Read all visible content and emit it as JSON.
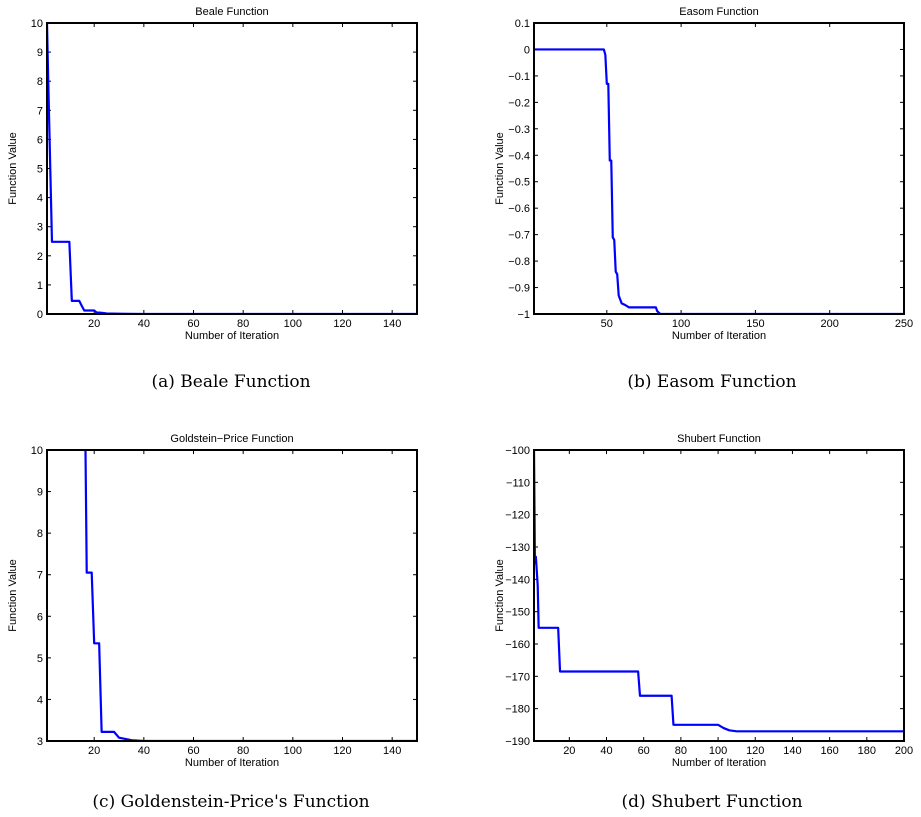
{
  "line_color": "#0000ff",
  "chart_data": [
    {
      "type": "line",
      "title": "Beale Function",
      "caption": "(a) Beale Function",
      "xlabel": "Number of Iteration",
      "ylabel": "Function Value",
      "xlim": [
        1,
        150
      ],
      "ylim": [
        0,
        10
      ],
      "xticks": [
        20,
        40,
        60,
        80,
        100,
        120,
        140
      ],
      "yticks": [
        0,
        1,
        2,
        3,
        4,
        5,
        6,
        7,
        8,
        9,
        10
      ],
      "x": [
        1,
        1.5,
        3,
        10,
        11,
        14,
        15,
        16,
        20,
        21,
        22,
        24,
        25,
        30,
        40,
        150
      ],
      "y": [
        10,
        8,
        2.48,
        2.48,
        0.45,
        0.45,
        0.28,
        0.12,
        0.12,
        0.05,
        0.05,
        0.03,
        0.02,
        0.01,
        0.0,
        0.0
      ]
    },
    {
      "type": "line",
      "title": "Easom Function",
      "caption": "(b) Easom Function",
      "xlabel": "Number of Iteration",
      "ylabel": "Function Value",
      "xlim": [
        1,
        250
      ],
      "ylim": [
        -1,
        0.1
      ],
      "xticks": [
        50,
        100,
        150,
        200,
        250
      ],
      "yticks": [
        0.1,
        0,
        -0.1,
        -0.2,
        -0.3,
        -0.4,
        -0.5,
        -0.6,
        -0.7,
        -0.8,
        -0.9,
        -1
      ],
      "x": [
        1,
        48,
        49,
        50,
        51,
        52,
        53,
        54,
        55,
        56,
        57,
        58,
        60,
        62,
        65,
        83,
        84,
        86,
        90,
        250
      ],
      "y": [
        0,
        0,
        -0.02,
        -0.13,
        -0.13,
        -0.42,
        -0.42,
        -0.71,
        -0.72,
        -0.84,
        -0.85,
        -0.93,
        -0.96,
        -0.965,
        -0.975,
        -0.975,
        -0.99,
        -1,
        -1,
        -1
      ]
    },
    {
      "type": "line",
      "title": "Goldstein−Price Function",
      "caption": "(c) Goldenstein-Price's Function",
      "xlabel": "Number of Iteration",
      "ylabel": "Function Value",
      "xlim": [
        1,
        150
      ],
      "ylim": [
        3,
        10
      ],
      "xticks": [
        20,
        40,
        60,
        80,
        100,
        120,
        140
      ],
      "yticks": [
        3,
        4,
        5,
        6,
        7,
        8,
        9,
        10
      ],
      "x": [
        16.5,
        17,
        19,
        20,
        22,
        23,
        28,
        30,
        35,
        40,
        150
      ],
      "y": [
        10,
        7.05,
        7.05,
        5.35,
        5.35,
        3.22,
        3.22,
        3.08,
        3.02,
        3.0,
        3.0
      ]
    },
    {
      "type": "line",
      "title": "Shubert Function",
      "caption": "(d) Shubert Function",
      "xlabel": "Number of Iteration",
      "ylabel": "Function Value",
      "xlim": [
        1,
        200
      ],
      "ylim": [
        -190,
        -100
      ],
      "xticks": [
        20,
        40,
        60,
        80,
        100,
        120,
        140,
        160,
        180,
        200
      ],
      "yticks": [
        -100,
        -110,
        -120,
        -130,
        -140,
        -150,
        -160,
        -170,
        -180,
        -190
      ],
      "x": [
        1,
        1.5,
        2,
        3,
        3.5,
        14,
        15,
        57,
        58,
        75,
        76,
        100,
        103,
        106,
        110,
        200
      ],
      "y": [
        -100,
        -135,
        -133,
        -142,
        -155,
        -155,
        -168.5,
        -168.5,
        -176,
        -176,
        -185,
        -185,
        -186,
        -186.7,
        -187,
        -187
      ]
    }
  ]
}
